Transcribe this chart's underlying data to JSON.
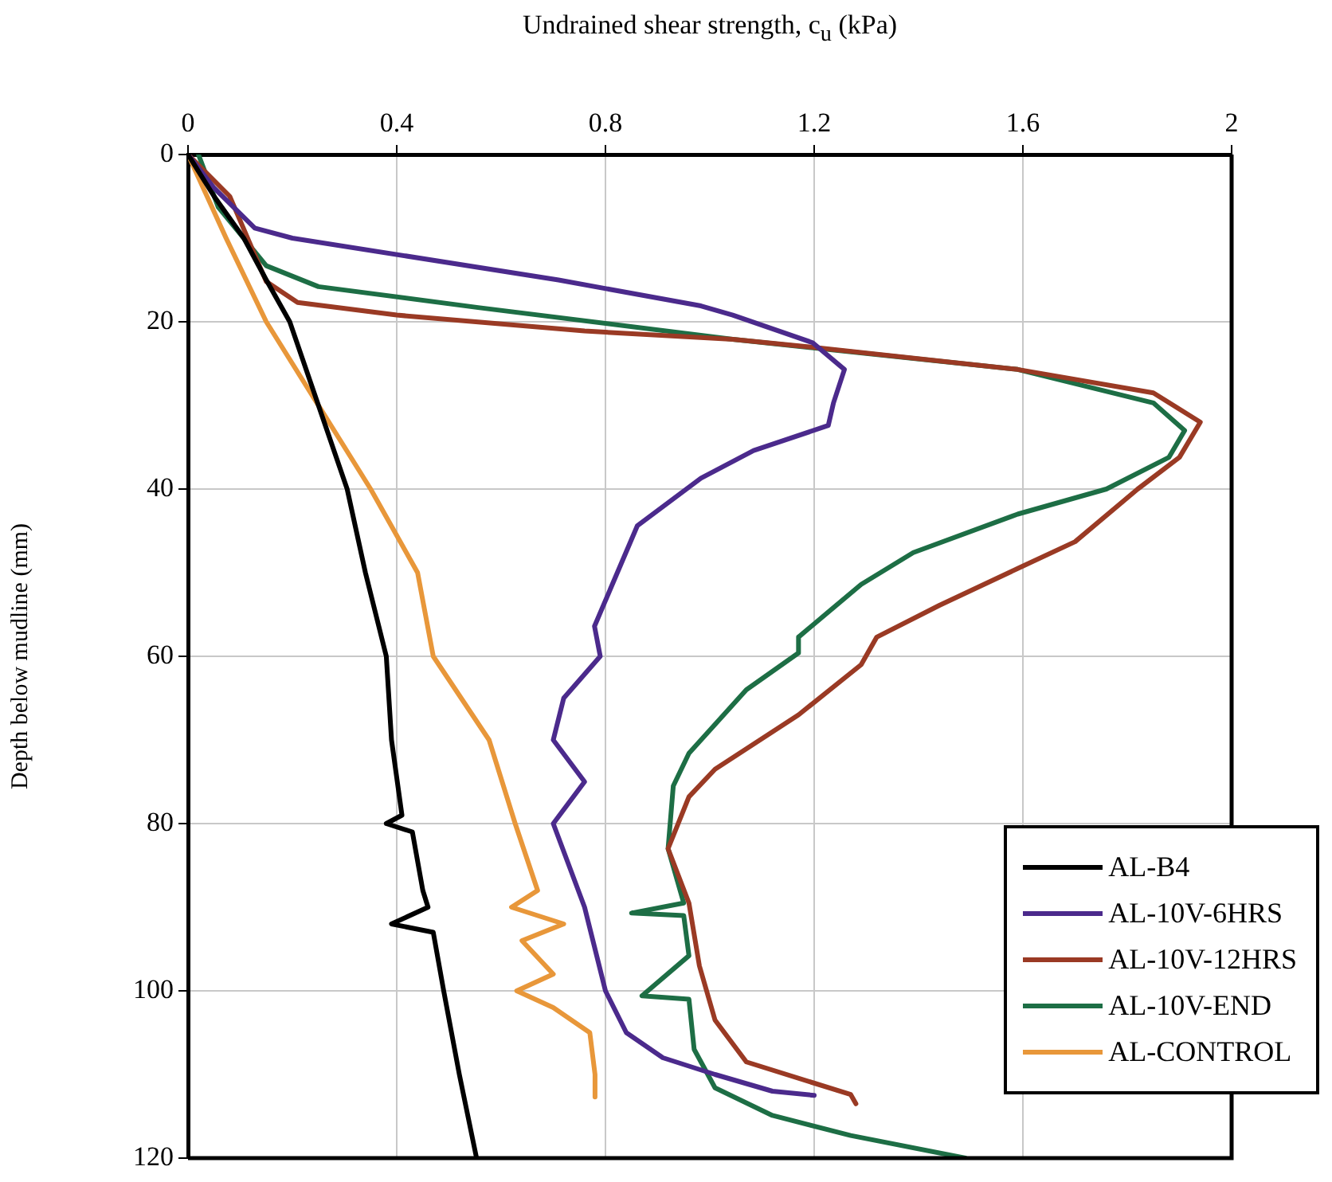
{
  "chart_data": {
    "type": "line",
    "xlabel": "Undrained shear strength, c$_{u}$ (kPa)",
    "ylabel": "Depth below mudline (mm)",
    "xlim": [
      0,
      2
    ],
    "xticks": [
      0,
      0.4,
      0.8,
      1.2,
      1.6,
      2
    ],
    "ylim": [
      120,
      0
    ],
    "yticks": [
      0,
      20,
      40,
      60,
      80,
      100,
      120
    ],
    "grid": true,
    "legend": "bottom right",
    "line_style": "solid",
    "marker": "none",
    "series": [
      {
        "name": "AL-B4",
        "color": "#000000",
        "x": [
          0,
          0.05,
          0.107,
          0.15,
          0.195,
          0.25,
          0.305,
          0.34,
          0.38,
          0.39,
          0.41,
          0.38,
          0.43,
          0.45,
          0.46,
          0.39,
          0.47,
          0.49,
          0.52,
          0.553
        ],
        "values": [
          0,
          5,
          10,
          15,
          20,
          30,
          40,
          50,
          60,
          70,
          79,
          80,
          81,
          88,
          90,
          92,
          93,
          100,
          110,
          120
        ]
      },
      {
        "name": "AL-10V-6HRS",
        "color": "#4b2a8c",
        "x": [
          0,
          0.05,
          0.128,
          0.2,
          0.71,
          0.983,
          1.044,
          1.197,
          1.258,
          1.237,
          1.227,
          1.084,
          0.983,
          0.861,
          0.779,
          0.79,
          0.72,
          0.7,
          0.76,
          0.7,
          0.76,
          0.8,
          0.84,
          0.91,
          1.01,
          1.12,
          1.2
        ],
        "values": [
          0,
          4,
          8.8,
          10,
          15,
          18.1,
          19.2,
          22.5,
          25.7,
          29.7,
          32.4,
          35.4,
          38.7,
          44.4,
          56.4,
          60,
          65,
          70,
          75,
          80,
          90,
          100,
          105,
          108,
          110,
          112,
          112.5
        ]
      },
      {
        "name": "AL-10V-12HRS",
        "color": "#9a3a24",
        "x": [
          0,
          0.08,
          0.15,
          0.21,
          0.4,
          0.76,
          1.044,
          1.19,
          1.59,
          1.85,
          1.94,
          1.9,
          1.82,
          1.7,
          1.59,
          1.44,
          1.32,
          1.29,
          1.17,
          1.01,
          0.96,
          0.92,
          0.96,
          0.98,
          1.01,
          1.07,
          1.27,
          1.28
        ],
        "values": [
          0,
          5,
          15.2,
          17.7,
          19.2,
          21.1,
          22.1,
          23,
          25.7,
          28.5,
          32,
          36.2,
          40,
          46.3,
          49.5,
          53.9,
          57.7,
          61,
          67,
          73.5,
          76.8,
          83,
          89.5,
          97,
          103.5,
          108.5,
          112.4,
          113.5
        ]
      },
      {
        "name": "AL-10V-END",
        "color": "#1d6e45",
        "x": [
          0.02,
          0.058,
          0.15,
          0.25,
          0.556,
          1.044,
          1.59,
          1.85,
          1.91,
          1.88,
          1.76,
          1.59,
          1.39,
          1.29,
          1.17,
          1.17,
          1.07,
          0.96,
          0.93,
          0.92,
          0.95,
          0.85,
          0.95,
          0.96,
          0.87,
          0.96,
          0.97,
          1.01,
          1.12,
          1.27,
          1.49
        ],
        "values": [
          0,
          6.3,
          13.3,
          15.8,
          18.3,
          22.1,
          25.7,
          29.7,
          33,
          36.2,
          40,
          43,
          47.6,
          51.4,
          57.7,
          59.6,
          64,
          71.6,
          75.5,
          83,
          89.5,
          90.7,
          91,
          95.8,
          100.6,
          101,
          107,
          111.6,
          114.9,
          117.3,
          120
        ]
      },
      {
        "name": "AL-CONTROL",
        "color": "#e8973a",
        "x": [
          0,
          0.073,
          0.15,
          0.25,
          0.35,
          0.44,
          0.47,
          0.577,
          0.627,
          0.67,
          0.62,
          0.72,
          0.64,
          0.7,
          0.63,
          0.7,
          0.77,
          0.78,
          0.78
        ],
        "values": [
          0,
          10,
          20,
          30,
          40,
          50,
          60,
          70,
          80,
          88,
          90,
          92,
          94,
          98,
          100,
          102,
          105,
          110,
          112.7
        ]
      }
    ]
  }
}
